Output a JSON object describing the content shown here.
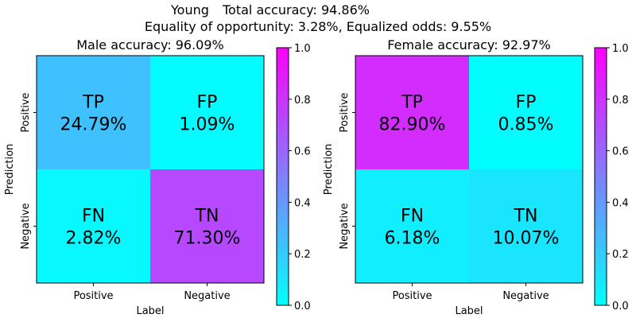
{
  "suptitle": {
    "line1_group": "Young",
    "line1_total": "Total accuracy: 94.86%",
    "line2": "Equality of opportunity: 3.28%, Equalized odds: 9.55%"
  },
  "colormap": "cool",
  "chart_data": [
    {
      "type": "heatmap",
      "title": "Male accuracy: 96.09%",
      "xlabel": "Label",
      "ylabel": "Prediction",
      "x_categories": [
        "Positive",
        "Negative"
      ],
      "y_categories": [
        "Positive",
        "Negative"
      ],
      "cells": [
        [
          {
            "code": "TP",
            "text": "24.79%",
            "value": 0.2479
          },
          {
            "code": "FP",
            "text": "1.09%",
            "value": 0.0109
          }
        ],
        [
          {
            "code": "FN",
            "text": "2.82%",
            "value": 0.0282
          },
          {
            "code": "TN",
            "text": "71.30%",
            "value": 0.713
          }
        ]
      ],
      "colorbar": {
        "min": 0.0,
        "max": 1.0,
        "ticks": [
          "0.0",
          "0.2",
          "0.4",
          "0.6",
          "0.8",
          "1.0"
        ]
      }
    },
    {
      "type": "heatmap",
      "title": "Female accuracy: 92.97%",
      "xlabel": "Label",
      "ylabel": "Prediction",
      "x_categories": [
        "Positive",
        "Negative"
      ],
      "y_categories": [
        "Positive",
        "Negative"
      ],
      "cells": [
        [
          {
            "code": "TP",
            "text": "82.90%",
            "value": 0.829
          },
          {
            "code": "FP",
            "text": "0.85%",
            "value": 0.0085
          }
        ],
        [
          {
            "code": "FN",
            "text": "6.18%",
            "value": 0.0618
          },
          {
            "code": "TN",
            "text": "10.07%",
            "value": 0.1007
          }
        ]
      ],
      "colorbar": {
        "min": 0.0,
        "max": 1.0,
        "ticks": [
          "0.0",
          "0.2",
          "0.4",
          "0.6",
          "0.8",
          "1.0"
        ]
      }
    }
  ]
}
